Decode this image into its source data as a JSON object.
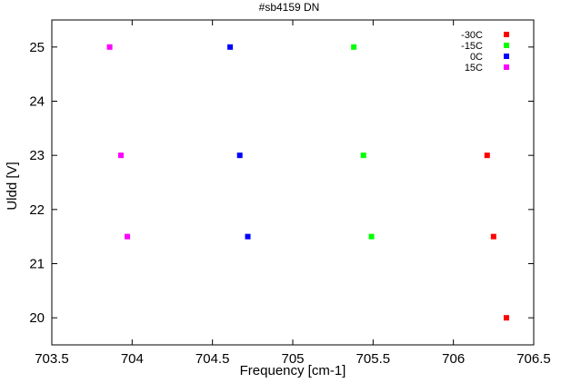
{
  "chart_data": {
    "type": "scatter",
    "title": "#sb4159 DN",
    "xlabel": "Frequency [cm-1]",
    "ylabel": "Uldd [V]",
    "xlim": [
      703.5,
      706.5
    ],
    "ylim": [
      19.5,
      25.5
    ],
    "x_ticks": [
      703.5,
      704,
      704.5,
      705,
      705.5,
      706,
      706.5
    ],
    "x_tick_labels": [
      "703.5",
      "704",
      "704.5",
      "705",
      "705.5",
      "706",
      "706.5"
    ],
    "y_ticks": [
      20,
      21,
      22,
      23,
      24,
      25
    ],
    "y_tick_labels": [
      "20",
      "21",
      "22",
      "23",
      "24",
      "25"
    ],
    "grid": false,
    "legend_position": "top-right",
    "series": [
      {
        "name": "-30C",
        "color": "#ff0000",
        "points": [
          {
            "x": 706.21,
            "y": 23.0
          },
          {
            "x": 706.25,
            "y": 21.5
          },
          {
            "x": 706.33,
            "y": 20.0
          }
        ]
      },
      {
        "name": "-15C",
        "color": "#00ff00",
        "points": [
          {
            "x": 705.38,
            "y": 25.0
          },
          {
            "x": 705.44,
            "y": 23.0
          },
          {
            "x": 705.49,
            "y": 21.5
          }
        ]
      },
      {
        "name": "0C",
        "color": "#0000ff",
        "points": [
          {
            "x": 704.61,
            "y": 25.0
          },
          {
            "x": 704.67,
            "y": 23.0
          },
          {
            "x": 704.72,
            "y": 21.5
          }
        ]
      },
      {
        "name": "15C",
        "color": "#ff00ff",
        "points": [
          {
            "x": 703.86,
            "y": 25.0
          },
          {
            "x": 703.93,
            "y": 23.0
          },
          {
            "x": 703.97,
            "y": 21.5
          }
        ]
      }
    ]
  }
}
